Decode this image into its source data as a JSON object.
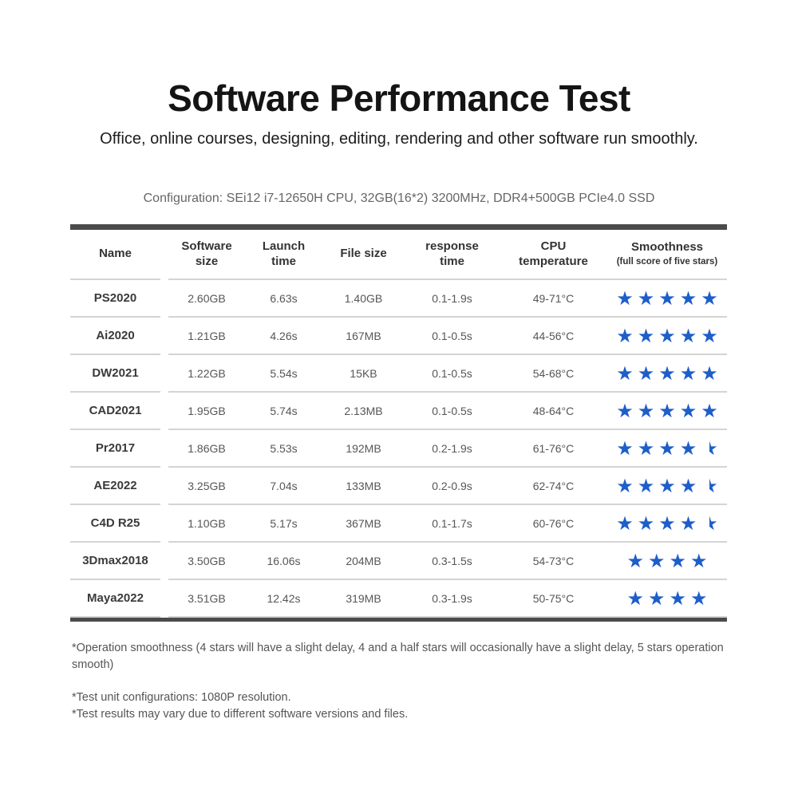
{
  "page": {
    "title": "Software Performance Test",
    "subtitle": "Office, online courses, designing, editing, rendering and other software run smoothly.",
    "configuration": "Configuration: SEi12 i7-12650H CPU, 32GB(16*2) 3200MHz, DDR4+500GB PCIe4.0 SSD"
  },
  "table": {
    "headers": {
      "name": "Name",
      "software_size": "Software size",
      "launch_time": "Launch time",
      "file_size": "File size",
      "response_time": "response time",
      "cpu_temperature": "CPU temperature",
      "smoothness": "Smoothness",
      "smoothness_sub": "(full score of five stars)"
    },
    "rows": [
      {
        "name": "PS2020",
        "software_size": "2.60GB",
        "launch_time": "6.63s",
        "file_size": "1.40GB",
        "response_time": "0.1-1.9s",
        "cpu_temperature": "49-71°C",
        "stars": 5
      },
      {
        "name": "Ai2020",
        "software_size": "1.21GB",
        "launch_time": "4.26s",
        "file_size": "167MB",
        "response_time": "0.1-0.5s",
        "cpu_temperature": "44-56°C",
        "stars": 5
      },
      {
        "name": "DW2021",
        "software_size": "1.22GB",
        "launch_time": "5.54s",
        "file_size": "15KB",
        "response_time": "0.1-0.5s",
        "cpu_temperature": "54-68°C",
        "stars": 5
      },
      {
        "name": "CAD2021",
        "software_size": "1.95GB",
        "launch_time": "5.74s",
        "file_size": "2.13MB",
        "response_time": "0.1-0.5s",
        "cpu_temperature": "48-64°C",
        "stars": 5
      },
      {
        "name": "Pr2017",
        "software_size": "1.86GB",
        "launch_time": "5.53s",
        "file_size": "192MB",
        "response_time": "0.2-1.9s",
        "cpu_temperature": "61-76°C",
        "stars": 4.5
      },
      {
        "name": "AE2022",
        "software_size": "3.25GB",
        "launch_time": "7.04s",
        "file_size": "133MB",
        "response_time": "0.2-0.9s",
        "cpu_temperature": "62-74°C",
        "stars": 4.5
      },
      {
        "name": "C4D R25",
        "software_size": "1.10GB",
        "launch_time": "5.17s",
        "file_size": "367MB",
        "response_time": "0.1-1.7s",
        "cpu_temperature": "60-76°C",
        "stars": 4.5
      },
      {
        "name": "3Dmax2018",
        "software_size": "3.50GB",
        "launch_time": "16.06s",
        "file_size": "204MB",
        "response_time": "0.3-1.5s",
        "cpu_temperature": "54-73°C",
        "stars": 4
      },
      {
        "name": "Maya2022",
        "software_size": "3.51GB",
        "launch_time": "12.42s",
        "file_size": "319MB",
        "response_time": "0.3-1.9s",
        "cpu_temperature": "50-75°C",
        "stars": 4
      }
    ]
  },
  "footnotes": [
    "*Operation smoothness (4 stars will have a slight delay, 4 and a half stars will occasionally have a slight delay, 5 stars operation smooth)",
    "*Test unit configurations: 1080P resolution.",
    "*Test results may vary due to different software versions and files."
  ],
  "colors": {
    "star_blue": "#1e5ec9",
    "bar_dark": "#4b4b4b",
    "separator": "#d4d4d4",
    "header_text": "#333333",
    "value_text": "#565656"
  },
  "icons": {
    "star_glyph": "★"
  },
  "chart_data": {
    "type": "table",
    "title": "Software Performance Test",
    "columns": [
      "Name",
      "Software size",
      "Launch time",
      "File size",
      "response time",
      "CPU temperature",
      "Smoothness (full score of five stars)"
    ],
    "rows": [
      [
        "PS2020",
        "2.60GB",
        "6.63s",
        "1.40GB",
        "0.1-1.9s",
        "49-71°C",
        5
      ],
      [
        "Ai2020",
        "1.21GB",
        "4.26s",
        "167MB",
        "0.1-0.5s",
        "44-56°C",
        5
      ],
      [
        "DW2021",
        "1.22GB",
        "5.54s",
        "15KB",
        "0.1-0.5s",
        "54-68°C",
        5
      ],
      [
        "CAD2021",
        "1.95GB",
        "5.74s",
        "2.13MB",
        "0.1-0.5s",
        "48-64°C",
        5
      ],
      [
        "Pr2017",
        "1.86GB",
        "5.53s",
        "192MB",
        "0.2-1.9s",
        "61-76°C",
        4.5
      ],
      [
        "AE2022",
        "3.25GB",
        "7.04s",
        "133MB",
        "0.2-0.9s",
        "62-74°C",
        4.5
      ],
      [
        "C4D R25",
        "1.10GB",
        "5.17s",
        "367MB",
        "0.1-1.7s",
        "60-76°C",
        4.5
      ],
      [
        "3Dmax2018",
        "3.50GB",
        "16.06s",
        "204MB",
        "0.3-1.5s",
        "54-73°C",
        4
      ],
      [
        "Maya2022",
        "3.51GB",
        "12.42s",
        "319MB",
        "0.3-1.9s",
        "50-75°C",
        4
      ]
    ],
    "star_scale_max": 5
  }
}
